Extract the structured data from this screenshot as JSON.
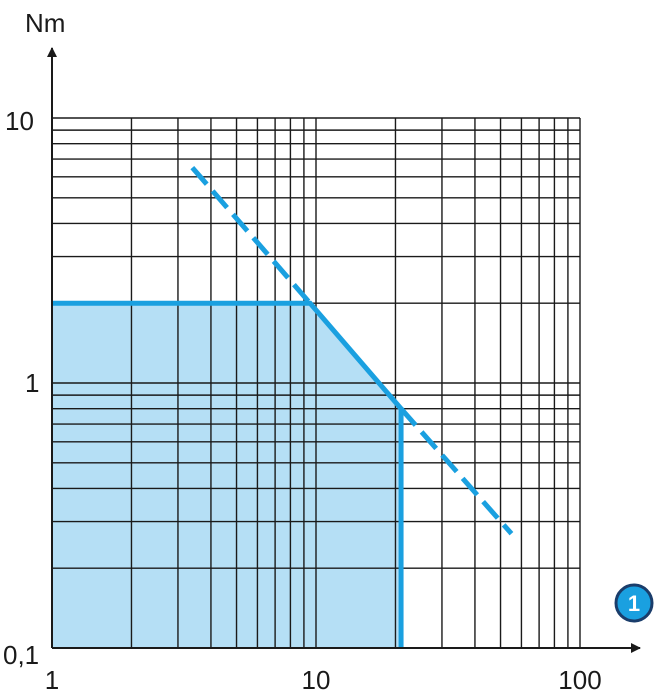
{
  "chart_data": {
    "type": "line",
    "title": "",
    "xlabel": "",
    "ylabel": "Nm",
    "x_scale": "log",
    "y_scale": "log",
    "xlim": [
      1,
      100
    ],
    "ylim": [
      0.1,
      10
    ],
    "grid": true,
    "x_tick_labels": [
      "1",
      "10",
      "100"
    ],
    "y_tick_labels": [
      "10",
      "1",
      "0,1"
    ],
    "x_axis_marker": "1",
    "series": [
      {
        "style": "solid",
        "color": "#1aa0e0",
        "points": [
          [
            1,
            2.0
          ],
          [
            9.5,
            2.0
          ],
          [
            21,
            0.8
          ],
          [
            21,
            0.1
          ]
        ]
      },
      {
        "style": "dashed",
        "color": "#1aa0e0",
        "points": [
          [
            3.4,
            6.5
          ],
          [
            9.5,
            2.0
          ]
        ]
      },
      {
        "style": "dashed",
        "color": "#1aa0e0",
        "points": [
          [
            21,
            0.8
          ],
          [
            55,
            0.27
          ]
        ]
      }
    ],
    "shaded_region": {
      "color": "#b5dff5",
      "points": [
        [
          1,
          0.1
        ],
        [
          1,
          2.0
        ],
        [
          9.5,
          2.0
        ],
        [
          21,
          0.8
        ],
        [
          21,
          0.1
        ]
      ]
    },
    "colors": {
      "grid": "#1a1a1a",
      "curve": "#1aa0e0",
      "fill": "#b5dff5",
      "badge_fill": "#1aa0e0",
      "badge_ring": "#1a3d6b",
      "badge_text": "#ffffff"
    }
  }
}
